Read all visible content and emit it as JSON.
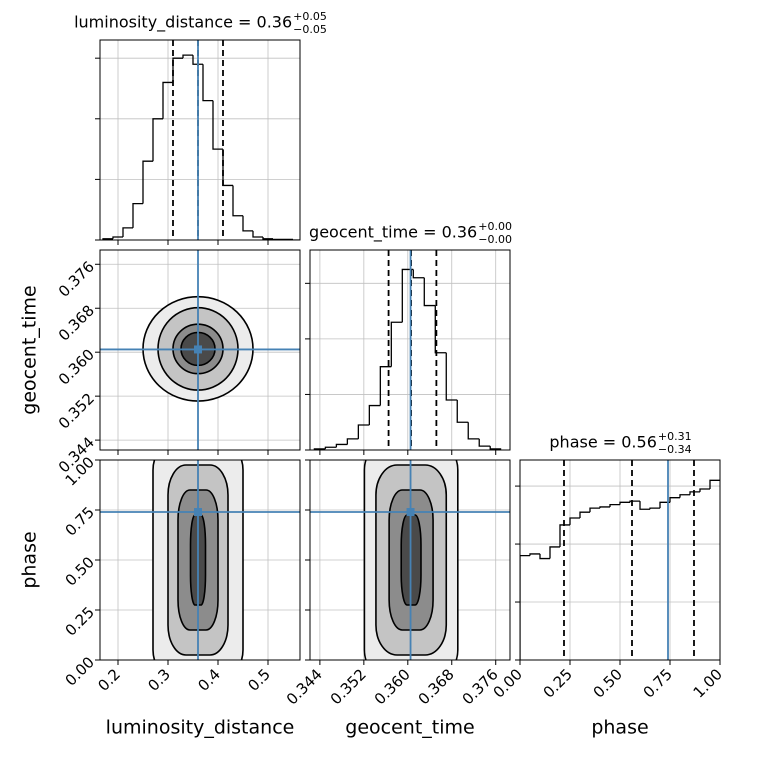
{
  "chart_data": {
    "type": "corner",
    "truth_color": "#4682b4",
    "grid": true,
    "parameters": [
      {
        "name": "luminosity_distance",
        "title": "luminosity_distance = 0.36",
        "title_plus": "+0.05",
        "title_minus": "−0.05",
        "xlim": [
          0.164,
          0.564
        ],
        "ticks": [
          0.2,
          0.3,
          0.4,
          0.5
        ],
        "truth": 0.36,
        "quantiles": [
          0.31,
          0.36,
          0.41
        ],
        "hist": {
          "ylim": [
            0,
            3.3
          ],
          "yticks": [
            0,
            1,
            2,
            3
          ],
          "bins": [
            0.17,
            0.19,
            0.21,
            0.23,
            0.25,
            0.27,
            0.29,
            0.31,
            0.33,
            0.35,
            0.37,
            0.39,
            0.41,
            0.43,
            0.45,
            0.47,
            0.49,
            0.51,
            0.53,
            0.55,
            0.57
          ],
          "counts": [
            0.02,
            0.05,
            0.2,
            0.6,
            1.3,
            2.0,
            2.6,
            3.0,
            3.05,
            2.9,
            2.3,
            1.5,
            0.9,
            0.4,
            0.15,
            0.05,
            0.02,
            0.01,
            0.01,
            0.0
          ]
        }
      },
      {
        "name": "geocent_time",
        "title": "geocent_time = 0.36",
        "title_plus": "+0.00",
        "title_minus": "−0.00",
        "xlim": [
          0.3422,
          0.3786
        ],
        "ticks": [
          0.344,
          0.352,
          {
            "value": 0.36,
            "label": "0.360"
          },
          0.368,
          0.376
        ],
        "truth": 0.3605,
        "quantiles": [
          0.3565,
          0.3606,
          0.3652
        ],
        "hist": {
          "ylim": [
            0,
            3.6
          ],
          "yticks": [
            0,
            1,
            2,
            3
          ],
          "bins": [
            0.343,
            0.345,
            0.347,
            0.349,
            0.351,
            0.353,
            0.355,
            0.357,
            0.359,
            0.361,
            0.363,
            0.365,
            0.367,
            0.369,
            0.371,
            0.373,
            0.375,
            0.377
          ],
          "counts": [
            0.02,
            0.05,
            0.1,
            0.2,
            0.45,
            0.8,
            1.5,
            2.3,
            3.25,
            3.1,
            2.6,
            1.75,
            0.9,
            0.5,
            0.2,
            0.07,
            0.02
          ]
        }
      },
      {
        "name": "phase",
        "title": "phase = 0.56",
        "title_plus": "+0.31",
        "title_minus": "−0.34",
        "xlim": [
          0,
          1
        ],
        "ticks": [
          {
            "value": 0,
            "label": "0.00"
          },
          {
            "value": 0.25,
            "label": "0.25"
          },
          {
            "value": 0.5,
            "label": "0.50"
          },
          {
            "value": 0.75,
            "label": "0.75"
          },
          {
            "value": 1,
            "label": "1.00"
          }
        ],
        "truth": 0.74,
        "quantiles": [
          0.22,
          0.56,
          0.87
        ],
        "hist": {
          "ylim": [
            0,
            3.45
          ],
          "yticks": [
            0,
            1,
            2,
            3
          ],
          "bins": [
            0,
            0.05,
            0.1,
            0.15,
            0.2,
            0.25,
            0.3,
            0.35,
            0.4,
            0.45,
            0.5,
            0.55,
            0.6,
            0.65,
            0.7,
            0.75,
            0.8,
            0.85,
            0.9,
            0.95,
            1.0
          ],
          "counts": [
            1.8,
            1.83,
            1.75,
            1.95,
            2.33,
            2.45,
            2.55,
            2.62,
            2.64,
            2.68,
            2.72,
            2.74,
            2.6,
            2.62,
            2.72,
            2.8,
            2.85,
            2.9,
            2.95,
            3.1
          ]
        }
      }
    ],
    "pairs": [
      {
        "x": 0,
        "y": 1,
        "contours": [
          {
            "rx": 0.11,
            "ry": 0.0095
          },
          {
            "rx": 0.08,
            "ry": 0.0075
          },
          {
            "rx": 0.05,
            "ry": 0.0045
          },
          {
            "rx": 0.034,
            "ry": 0.003
          }
        ]
      },
      {
        "x": 0,
        "y": 2,
        "contours": [
          {
            "rx": 0.09
          },
          {
            "rx": 0.06
          },
          {
            "rx": 0.04
          },
          {
            "rx": 0.015
          }
        ]
      },
      {
        "x": 1,
        "y": 2,
        "contours": [
          {
            "rx": 0.0085
          },
          {
            "rx": 0.0064
          },
          {
            "rx": 0.004
          },
          {
            "rx": 0.0018
          }
        ]
      }
    ]
  }
}
